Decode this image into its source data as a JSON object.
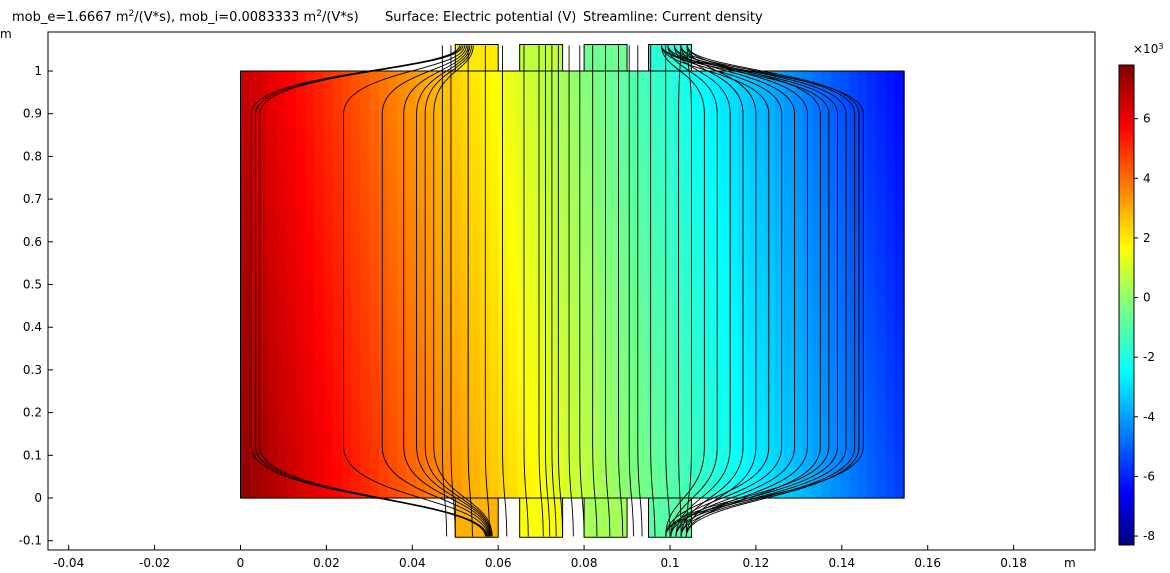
{
  "title": {
    "mob_e_label": "mob_e=1.6667 m",
    "mob_e_unit_sup": "2",
    "mob_e_unit_tail": "/(V*s), mob_i=0.0083333 m",
    "mob_i_unit_sup": "2",
    "mob_i_unit_tail": "/(V*s)",
    "surface_label": "Surface: Electric potential (V)",
    "streamline_label": "Streamline: Current density"
  },
  "axes": {
    "y_unit": "m",
    "x_unit": "m"
  },
  "colorbar": {
    "scale_text": "×10",
    "scale_exp": "3",
    "ticks": [
      6,
      4,
      2,
      0,
      -2,
      -4,
      -6,
      -8
    ],
    "range": [
      -8.3,
      7.8
    ],
    "colormap": "rainbow"
  },
  "chart_data": {
    "type": "heatmap",
    "description_fields": [
      "surface",
      "streamline"
    ],
    "xlim": [
      -0.046,
      0.197
    ],
    "ylim": [
      -0.12,
      1.065
    ],
    "xticks": [
      "-0.04",
      "-0.02",
      "0",
      "0.02",
      "0.04",
      "0.06",
      "0.08",
      "0.1",
      "0.12",
      "0.14",
      "0.16",
      "0.18"
    ],
    "yticks": [
      "-0.1",
      "0",
      "0.1",
      "0.2",
      "0.3",
      "0.4",
      "0.5",
      "0.6",
      "0.7",
      "0.8",
      "0.9",
      "1"
    ],
    "main_domain": {
      "x": [
        0,
        0.1545
      ],
      "y": [
        0,
        1.0
      ]
    },
    "electrodes_top": [
      {
        "x": [
          0.05,
          0.06
        ],
        "y": [
          1.0,
          1.062
        ]
      },
      {
        "x": [
          0.065,
          0.075
        ],
        "y": [
          1.0,
          1.062
        ]
      },
      {
        "x": [
          0.08,
          0.09
        ],
        "y": [
          1.0,
          1.062
        ]
      },
      {
        "x": [
          0.095,
          0.105
        ],
        "y": [
          1.0,
          1.062
        ]
      }
    ],
    "electrodes_bottom": [
      {
        "x": [
          0.05,
          0.06
        ],
        "y": [
          -0.092,
          0.0
        ]
      },
      {
        "x": [
          0.065,
          0.075
        ],
        "y": [
          -0.092,
          0.0
        ]
      },
      {
        "x": [
          0.08,
          0.09
        ],
        "y": [
          -0.092,
          0.0
        ]
      },
      {
        "x": [
          0.095,
          0.105
        ],
        "y": [
          -0.092,
          0.0
        ]
      }
    ],
    "potential_kV_at_left_bottom": 7.6,
    "potential_kV_at_right_top": -6.5,
    "streamline_count": 46
  }
}
